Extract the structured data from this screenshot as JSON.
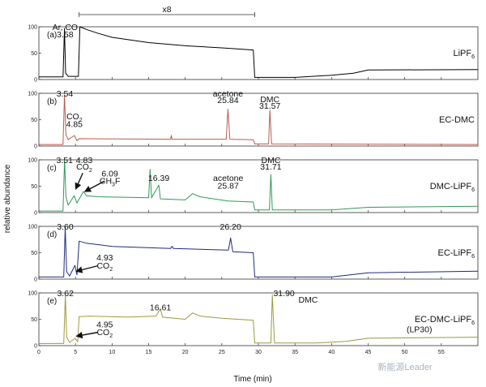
{
  "chart_data": {
    "type": "line",
    "xlabel": "Time (min)",
    "ylabel": "relative abundance",
    "xlim": [
      0,
      60
    ],
    "ylim": [
      0,
      100
    ],
    "x_ticks": [
      "0",
      "5",
      "10",
      "15",
      "20",
      "25",
      "30",
      "35",
      "40",
      "45",
      "50",
      "55"
    ],
    "y_ticks": [
      "0",
      "50",
      "100"
    ],
    "scale_annotation": "x8",
    "scale_range": [
      5.5,
      29.5
    ],
    "watermark": "新能源Leader",
    "panels": [
      {
        "label": "(a)",
        "series_name": "LiPF",
        "series_sub": "6",
        "color": "#000000",
        "points": [
          [
            0,
            5
          ],
          [
            3.3,
            5
          ],
          [
            3.5,
            97
          ],
          [
            3.65,
            12
          ],
          [
            4.0,
            6
          ],
          [
            5.4,
            6
          ],
          [
            5.6,
            100
          ],
          [
            6.5,
            95
          ],
          [
            8,
            88
          ],
          [
            10,
            80
          ],
          [
            15,
            70
          ],
          [
            20,
            64
          ],
          [
            25,
            60
          ],
          [
            29.3,
            56
          ],
          [
            29.5,
            4
          ],
          [
            35,
            4
          ],
          [
            40,
            8
          ],
          [
            43,
            12
          ],
          [
            45,
            18
          ],
          [
            60,
            19
          ]
        ],
        "annotations": [
          {
            "text": "Ar, CO",
            "x": 3.58,
            "y": 100
          },
          {
            "text": "3.58",
            "x": 3.58,
            "y": 85
          }
        ]
      },
      {
        "label": "(b)",
        "series_name": "EC-DMC",
        "series_sub": "",
        "color": "#b85c4e",
        "points": [
          [
            0,
            3
          ],
          [
            3.3,
            3
          ],
          [
            3.5,
            97
          ],
          [
            3.7,
            22
          ],
          [
            4.0,
            12
          ],
          [
            4.85,
            20
          ],
          [
            5.2,
            10
          ],
          [
            5.5,
            14
          ],
          [
            18,
            13
          ],
          [
            18.1,
            20
          ],
          [
            18.2,
            13
          ],
          [
            25.6,
            13
          ],
          [
            25.84,
            70
          ],
          [
            26.1,
            13
          ],
          [
            29.3,
            12
          ],
          [
            29.5,
            4
          ],
          [
            31.4,
            4
          ],
          [
            31.57,
            68
          ],
          [
            31.8,
            4
          ],
          [
            60,
            3
          ]
        ],
        "annotations": [
          {
            "text": "3.54",
            "x": 3.54,
            "y": 100
          },
          {
            "text": "CO",
            "sub": "2",
            "x": 4.85,
            "y": 52
          },
          {
            "text": "4.85",
            "x": 4.85,
            "y": 36
          },
          {
            "text": "acetone",
            "x": 25.84,
            "y": 100
          },
          {
            "text": "25.84",
            "x": 25.84,
            "y": 86
          },
          {
            "text": "DMC",
            "x": 31.57,
            "y": 88
          },
          {
            "text": "31.57",
            "x": 31.57,
            "y": 74
          }
        ]
      },
      {
        "label": "(c)",
        "series_name": "DMC-LiPF",
        "series_sub": "6",
        "color": "#2e9a5a",
        "points": [
          [
            0,
            3
          ],
          [
            3.3,
            3
          ],
          [
            3.51,
            100
          ],
          [
            3.7,
            30
          ],
          [
            4.0,
            14
          ],
          [
            4.83,
            32
          ],
          [
            5.2,
            18
          ],
          [
            6.09,
            40
          ],
          [
            6.5,
            32
          ],
          [
            8,
            30
          ],
          [
            15,
            28
          ],
          [
            15.2,
            82
          ],
          [
            15.4,
            28
          ],
          [
            16.39,
            52
          ],
          [
            16.6,
            26
          ],
          [
            20,
            24
          ],
          [
            21,
            36
          ],
          [
            22,
            30
          ],
          [
            25.87,
            22
          ],
          [
            29.3,
            20
          ],
          [
            29.5,
            5
          ],
          [
            31.5,
            5
          ],
          [
            31.71,
            72
          ],
          [
            31.9,
            5
          ],
          [
            40,
            5
          ],
          [
            45,
            10
          ],
          [
            60,
            12
          ]
        ],
        "annotations": [
          {
            "text": "3.51",
            "x": 3.51,
            "y": 100
          },
          {
            "text": "4.83",
            "x": 6.2,
            "y": 100
          },
          {
            "text": "CO",
            "sub": "2",
            "x": 6.2,
            "y": 86
          },
          {
            "text": "6.09",
            "x": 9.7,
            "y": 72
          },
          {
            "text": "CH",
            "sub": "3",
            "tail": "F",
            "x": 9.7,
            "y": 56
          },
          {
            "text": "16.39",
            "x": 16.39,
            "y": 62
          },
          {
            "text": "acetone",
            "x": 25.87,
            "y": 62
          },
          {
            "text": "25.87",
            "x": 25.87,
            "y": 46
          },
          {
            "text": "DMC",
            "x": 31.71,
            "y": 100
          },
          {
            "text": "31.71",
            "x": 31.71,
            "y": 86
          }
        ]
      },
      {
        "label": "(d)",
        "series_name": "EC-LiPF",
        "series_sub": "6",
        "color": "#1f2a7a",
        "points": [
          [
            0,
            4
          ],
          [
            3.4,
            4
          ],
          [
            3.6,
            98
          ],
          [
            3.8,
            14
          ],
          [
            4.2,
            6
          ],
          [
            4.93,
            26
          ],
          [
            5.2,
            8
          ],
          [
            5.5,
            72
          ],
          [
            6.5,
            68
          ],
          [
            10,
            62
          ],
          [
            18,
            58
          ],
          [
            18.2,
            62
          ],
          [
            18.4,
            58
          ],
          [
            25.9,
            55
          ],
          [
            26.2,
            78
          ],
          [
            26.5,
            52
          ],
          [
            29.3,
            50
          ],
          [
            29.5,
            4
          ],
          [
            40,
            4
          ],
          [
            45,
            12
          ],
          [
            60,
            15
          ]
        ],
        "annotations": [
          {
            "text": "3.60",
            "x": 3.6,
            "y": 100
          },
          {
            "text": "4.93",
            "x": 9.0,
            "y": 35
          },
          {
            "text": "CO",
            "sub": "2",
            "x": 9.0,
            "y": 18
          },
          {
            "text": "26.20",
            "x": 26.2,
            "y": 100
          }
        ]
      },
      {
        "label": "(e)",
        "series_name": "EC-DMC-LiPF",
        "series_sub": "6",
        "color": "#9a9a3e",
        "points": [
          [
            0,
            4
          ],
          [
            3.4,
            4
          ],
          [
            3.62,
            96
          ],
          [
            3.8,
            16
          ],
          [
            4.2,
            6
          ],
          [
            4.95,
            14
          ],
          [
            5.3,
            7
          ],
          [
            5.5,
            55
          ],
          [
            7,
            56
          ],
          [
            12,
            54
          ],
          [
            16,
            56
          ],
          [
            16.61,
            70
          ],
          [
            16.9,
            54
          ],
          [
            20,
            50
          ],
          [
            21,
            62
          ],
          [
            22,
            56
          ],
          [
            25,
            52
          ],
          [
            29.3,
            48
          ],
          [
            29.5,
            5
          ],
          [
            31.7,
            5
          ],
          [
            31.9,
            96
          ],
          [
            32.2,
            5
          ],
          [
            38,
            5
          ],
          [
            42,
            8
          ],
          [
            45,
            14
          ],
          [
            60,
            16
          ]
        ],
        "annotations": [
          {
            "text": "3.62",
            "x": 3.62,
            "y": 100
          },
          {
            "text": "4.95",
            "x": 9.0,
            "y": 34
          },
          {
            "text": "CO",
            "sub": "2",
            "x": 9.0,
            "y": 18
          },
          {
            "text": "16.61",
            "x": 16.61,
            "y": 70
          },
          {
            "text": "31.90",
            "x": 33.5,
            "y": 100
          },
          {
            "text": "DMC",
            "x": 36.8,
            "y": 86
          },
          {
            "text": "(LP30)",
            "x": 52,
            "y": 24
          }
        ]
      }
    ]
  }
}
